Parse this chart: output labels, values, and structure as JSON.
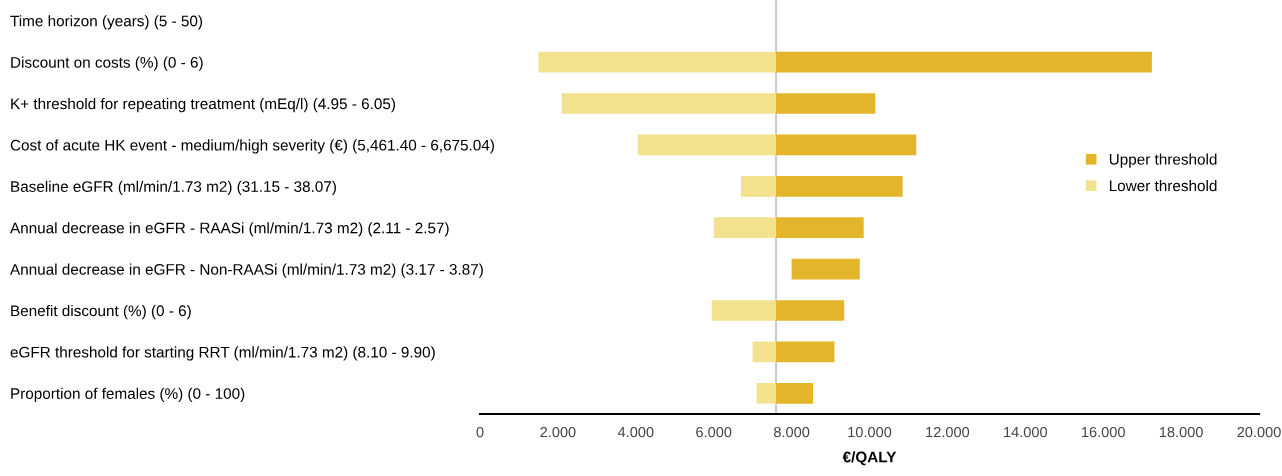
{
  "chart_data": {
    "type": "bar",
    "orientation": "horizontal",
    "xlabel": "€/QALY",
    "categories": [
      "Time horizon (years) (5 - 50)",
      "Discount on costs (%) (0 - 6)",
      "K+ threshold for repeating treatment (mEq/l) (4.95 - 6.05)",
      "Cost of acute HK event - medium/high severity (€) (5,461.40 - 6,675.04)",
      "Baseline eGFR (ml/min/1.73 m2) (31.15 - 38.07)",
      "Annual decrease in eGFR - RAASi (ml/min/1.73 m2) (2.11 - 2.57)",
      "Annual decrease in eGFR - Non-RAASi (ml/min/1.73 m2) (3.17 - 3.87)",
      "Benefit discount (%) (0 - 6)",
      "eGFR threshold for starting RRT (ml/min/1.73 m2) (8.10 - 9.90)",
      "Proportion of females (%) (0 - 100)"
    ],
    "series": [
      {
        "name": "Upper threshold",
        "color": "#e3b52a",
        "base": [
          null,
          7.6,
          7.6,
          7.6,
          7.6,
          7.6,
          8.0,
          7.6,
          7.6,
          7.6
        ],
        "values": [
          null,
          9.65,
          2.55,
          3.6,
          3.25,
          2.25,
          1.75,
          1.75,
          1.5,
          0.95
        ]
      },
      {
        "name": "Lower threshold",
        "color": "#f2e28e",
        "base": [
          null,
          1.5,
          2.1,
          4.05,
          6.7,
          6.0,
          null,
          5.95,
          7.0,
          7.1
        ],
        "values": [
          null,
          6.1,
          5.5,
          3.55,
          0.9,
          1.6,
          null,
          1.65,
          0.6,
          0.5
        ]
      }
    ],
    "xlim": [
      0,
      20
    ],
    "xticks": [
      0,
      {
        "value": 2,
        "label": "2.000"
      },
      {
        "value": 4,
        "label": "4.000"
      },
      {
        "value": 6,
        "label": "6.000"
      },
      {
        "value": 8,
        "label": "8.000"
      },
      {
        "value": 10,
        "label": "10.000"
      },
      {
        "value": 12,
        "label": "12.000"
      },
      {
        "value": 14,
        "label": "14.000"
      },
      {
        "value": 16,
        "label": "16.000"
      },
      {
        "value": 18,
        "label": "18.000"
      },
      {
        "value": 20,
        "label": "20.000"
      }
    ],
    "ref_lines": [
      {
        "axis": "x",
        "value": 7.6,
        "color": "#cccccc"
      }
    ],
    "legend": "right",
    "grid": false
  }
}
